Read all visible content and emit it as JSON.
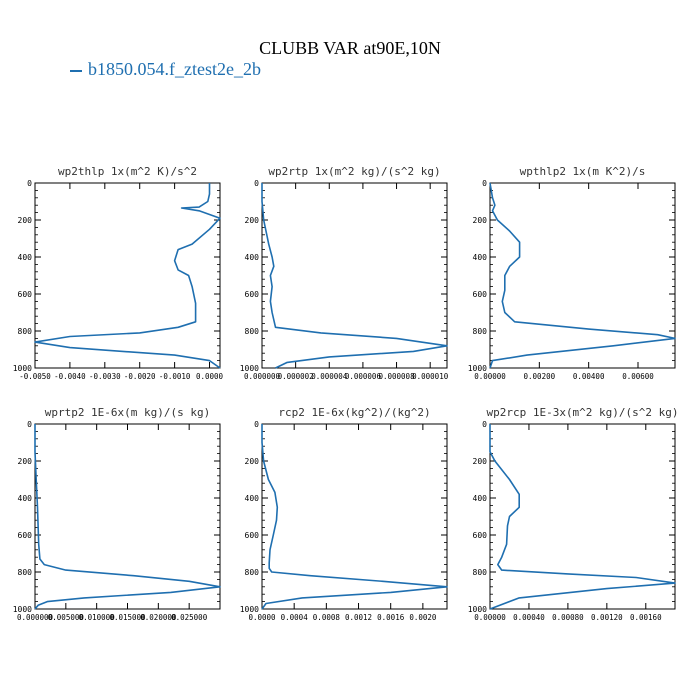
{
  "figure": {
    "title": "CLUBB VAR at90E,10N",
    "legend_label": "b1850.054.f_ztest2e_2b",
    "line_color": "#1f6fb0"
  },
  "chart_data": [
    {
      "type": "line",
      "title": "wp2thlp  1x(m^2 K)/s^2",
      "xlim": [
        -0.005,
        0.0003
      ],
      "xticks": [
        -0.005,
        -0.004,
        -0.003,
        -0.002,
        -0.001,
        0.0
      ],
      "xticklabels": [
        "-0.0050",
        "-0.0040",
        "-0.0030",
        "-0.0020",
        "-0.0010",
        "0.0000"
      ],
      "ylim": [
        1000,
        0
      ],
      "yticks": [
        0,
        200,
        400,
        600,
        800,
        1000
      ],
      "series": [
        {
          "x": [
            0.0,
            0.0,
            -5e-05,
            -0.0003,
            -0.0008,
            -0.0003,
            0.0003,
            0.0,
            -0.0005,
            -0.0009,
            -0.001,
            -0.0009,
            -0.0006,
            -0.0005,
            -0.0004,
            -0.0004,
            -0.0009,
            -0.002,
            -0.004,
            -0.005,
            -0.004,
            -0.001,
            0.0,
            0.0003
          ],
          "y": [
            0,
            60,
            100,
            130,
            135,
            150,
            190,
            250,
            330,
            360,
            420,
            470,
            500,
            560,
            650,
            750,
            780,
            810,
            830,
            860,
            890,
            930,
            960,
            1000
          ]
        }
      ]
    },
    {
      "type": "line",
      "title": "wp2rtp  1x(m^2 kg)/(s^2 kg)",
      "xlim": [
        0.0,
        1.1e-05
      ],
      "xticks": [
        0.0,
        2e-06,
        4e-06,
        6e-06,
        8e-06,
        1e-05
      ],
      "xticklabels": [
        "0.000000",
        "0.000002",
        "0.000004",
        "0.000006",
        "0.000008",
        "0.000010"
      ],
      "ylim": [
        1000,
        0
      ],
      "yticks": [
        0,
        200,
        400,
        600,
        800,
        1000
      ],
      "series": [
        {
          "x": [
            0.0,
            0.0,
            1e-07,
            4e-07,
            6e-07,
            7e-07,
            5e-07,
            6e-07,
            5e-07,
            6e-07,
            8e-07,
            3.5e-06,
            8e-06,
            1.1e-05,
            9e-06,
            4e-06,
            1.5e-06,
            8e-07
          ],
          "y": [
            0,
            100,
            200,
            330,
            400,
            450,
            500,
            560,
            640,
            700,
            780,
            810,
            840,
            880,
            910,
            940,
            970,
            1000
          ]
        }
      ]
    },
    {
      "type": "line",
      "title": "wpthlp2  1x(m K^2)/s",
      "xlim": [
        0.0,
        0.0075
      ],
      "xticks": [
        0.0,
        0.002,
        0.004,
        0.006
      ],
      "xticklabels": [
        "0.00000",
        "0.00200",
        "0.00400",
        "0.00600"
      ],
      "ylim": [
        1000,
        0
      ],
      "yticks": [
        0,
        200,
        400,
        600,
        800,
        1000
      ],
      "series": [
        {
          "x": [
            0.0,
            0.0001,
            0.0002,
            0.0001,
            0.0003,
            0.0008,
            0.0012,
            0.0012,
            0.0008,
            0.0006,
            0.0006,
            0.0005,
            0.0006,
            0.001,
            0.004,
            0.0068,
            0.0075,
            0.005,
            0.0015,
            0.0001,
            0.0
          ],
          "y": [
            0,
            80,
            120,
            150,
            200,
            260,
            320,
            400,
            450,
            500,
            580,
            640,
            700,
            750,
            790,
            820,
            840,
            880,
            930,
            960,
            1000
          ]
        }
      ]
    },
    {
      "type": "line",
      "title": "wprtp2  1E-6x(m kg)/(s kg)",
      "xlim": [
        0.0,
        0.03
      ],
      "xticks": [
        0.0,
        0.005,
        0.01,
        0.015,
        0.02,
        0.025
      ],
      "xticklabels": [
        "0.000000",
        "0.005000",
        "0.010000",
        "0.015000",
        "0.020000",
        "0.025000"
      ],
      "ylim": [
        1000,
        0
      ],
      "yticks": [
        0,
        200,
        400,
        600,
        800,
        1000
      ],
      "series": [
        {
          "x": [
            0.0,
            0.0,
            0.0002,
            0.0004,
            0.0005,
            0.0006,
            0.0008,
            0.0015,
            0.005,
            0.016,
            0.025,
            0.03,
            0.022,
            0.008,
            0.002,
            0.0005,
            0.0
          ],
          "y": [
            0,
            150,
            300,
            450,
            550,
            650,
            730,
            760,
            790,
            820,
            850,
            880,
            910,
            940,
            960,
            980,
            1000
          ]
        }
      ]
    },
    {
      "type": "line",
      "title": "rcp2  1E-6x(kg^2)/(kg^2)",
      "xlim": [
        0.0,
        0.0023
      ],
      "xticks": [
        0.0,
        0.0004,
        0.0008,
        0.0012,
        0.0016,
        0.002
      ],
      "xticklabels": [
        "0.0000",
        "0.0004",
        "0.0008",
        "0.0012",
        "0.0016",
        "0.0020"
      ],
      "ylim": [
        1000,
        0
      ],
      "yticks": [
        0,
        200,
        400,
        600,
        800,
        1000
      ],
      "series": [
        {
          "x": [
            0.0,
            0.0,
            2e-05,
            8e-05,
            0.00016,
            0.00019,
            0.00018,
            0.00014,
            0.0001,
            9e-05,
            9e-05,
            0.00012,
            0.0006,
            0.0015,
            0.0023,
            0.0016,
            0.0005,
            5e-05,
            0.0
          ],
          "y": [
            0,
            100,
            200,
            300,
            370,
            450,
            520,
            600,
            680,
            750,
            780,
            800,
            820,
            850,
            880,
            910,
            940,
            970,
            1000
          ]
        }
      ]
    },
    {
      "type": "line",
      "title": "wp2rcp  1E-3x(m^2 kg)/(s^2 kg)",
      "xlim": [
        0.0,
        0.0019
      ],
      "xticks": [
        0.0,
        0.0004,
        0.0008,
        0.0012,
        0.0016
      ],
      "xticklabels": [
        "0.00000",
        "0.00040",
        "0.00080",
        "0.00120",
        "0.00160"
      ],
      "ylim": [
        1000,
        0
      ],
      "yticks": [
        0,
        200,
        400,
        600,
        800,
        1000
      ],
      "series": [
        {
          "x": [
            0.0,
            0.0,
            5e-05,
            0.0002,
            0.0003,
            0.0003,
            0.0002,
            0.00018,
            0.00017,
            0.00012,
            8e-05,
            0.00012,
            0.0008,
            0.0015,
            0.0019,
            0.0012,
            0.0003,
            0.0
          ],
          "y": [
            0,
            150,
            200,
            300,
            380,
            450,
            500,
            550,
            650,
            720,
            760,
            790,
            810,
            830,
            860,
            890,
            940,
            1000
          ]
        }
      ]
    }
  ]
}
